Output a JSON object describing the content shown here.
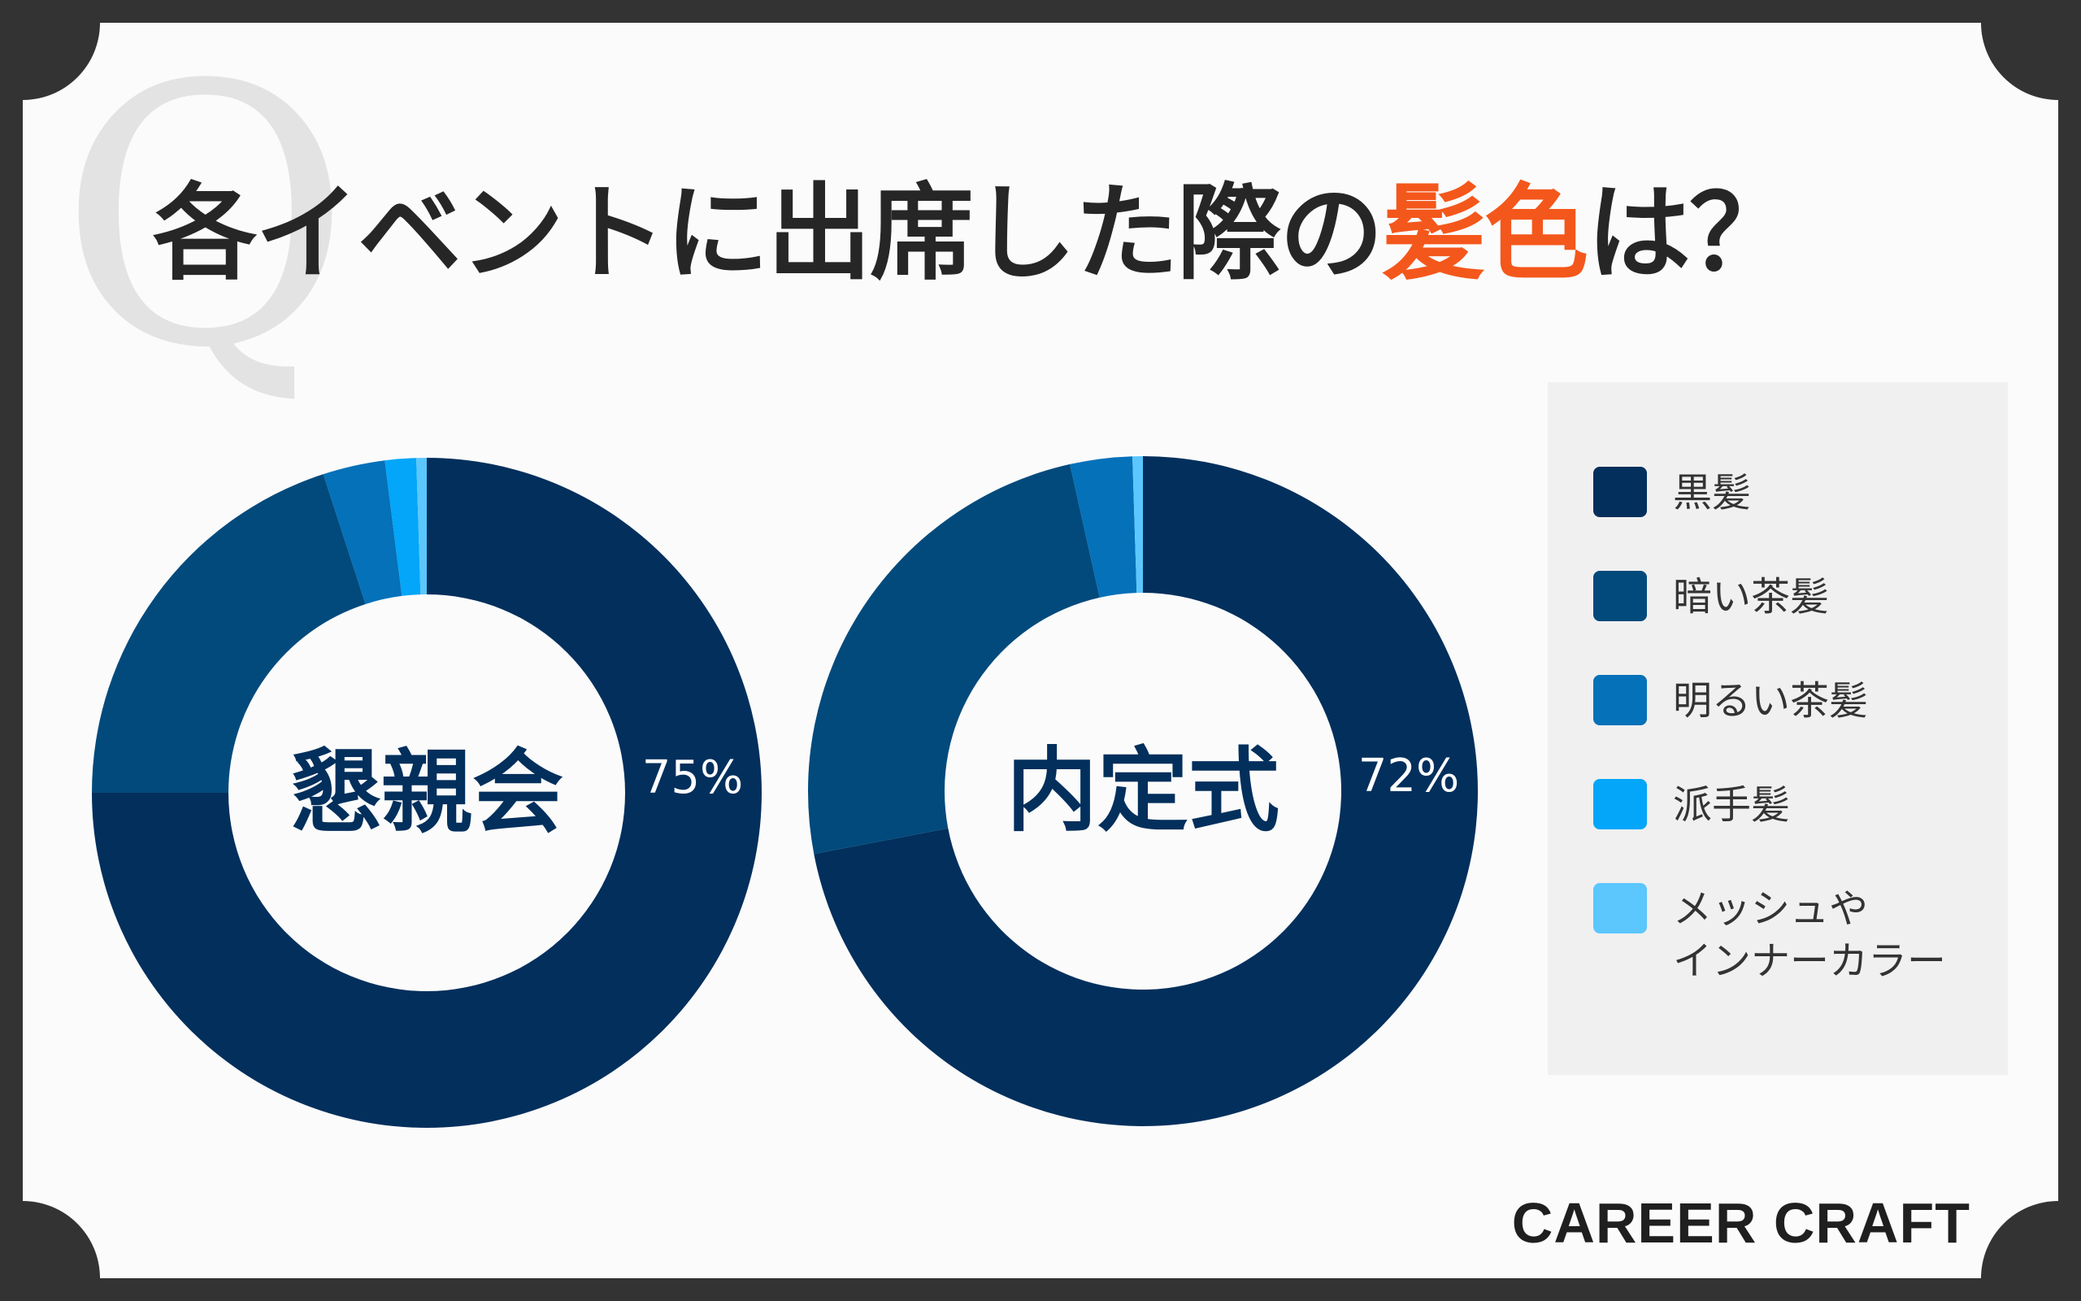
{
  "title": {
    "prefix": "各イベントに出席した際の",
    "accent": "髪色",
    "suffix": "は？",
    "accent_color": "#f4571b"
  },
  "watermark": "Q",
  "brand": "CAREER CRAFT",
  "chart_data": [
    {
      "type": "pie",
      "center_label": "懇親会",
      "highlight_label": "75%",
      "categories": [
        "黒髪",
        "暗い茶髪",
        "明るい茶髪",
        "派手髪",
        "メッシュやインナーカラー"
      ],
      "values": [
        75,
        20,
        3,
        1.5,
        0.5
      ]
    },
    {
      "type": "pie",
      "center_label": "内定式",
      "highlight_label": "72%",
      "categories": [
        "黒髪",
        "暗い茶髪",
        "明るい茶髪",
        "派手髪",
        "メッシュやインナーカラー"
      ],
      "values": [
        72,
        24.5,
        3,
        0,
        0.5
      ]
    }
  ],
  "legend": [
    {
      "label": "黒髪",
      "color": "#022f5c"
    },
    {
      "label": "暗い茶髪",
      "color": "#024a7c"
    },
    {
      "label": "明るい茶髪",
      "color": "#0471b9"
    },
    {
      "label": "派手髪",
      "color": "#03a6f8"
    },
    {
      "label": "メッシュや\nインナーカラー",
      "color": "#5bc7fd"
    }
  ]
}
